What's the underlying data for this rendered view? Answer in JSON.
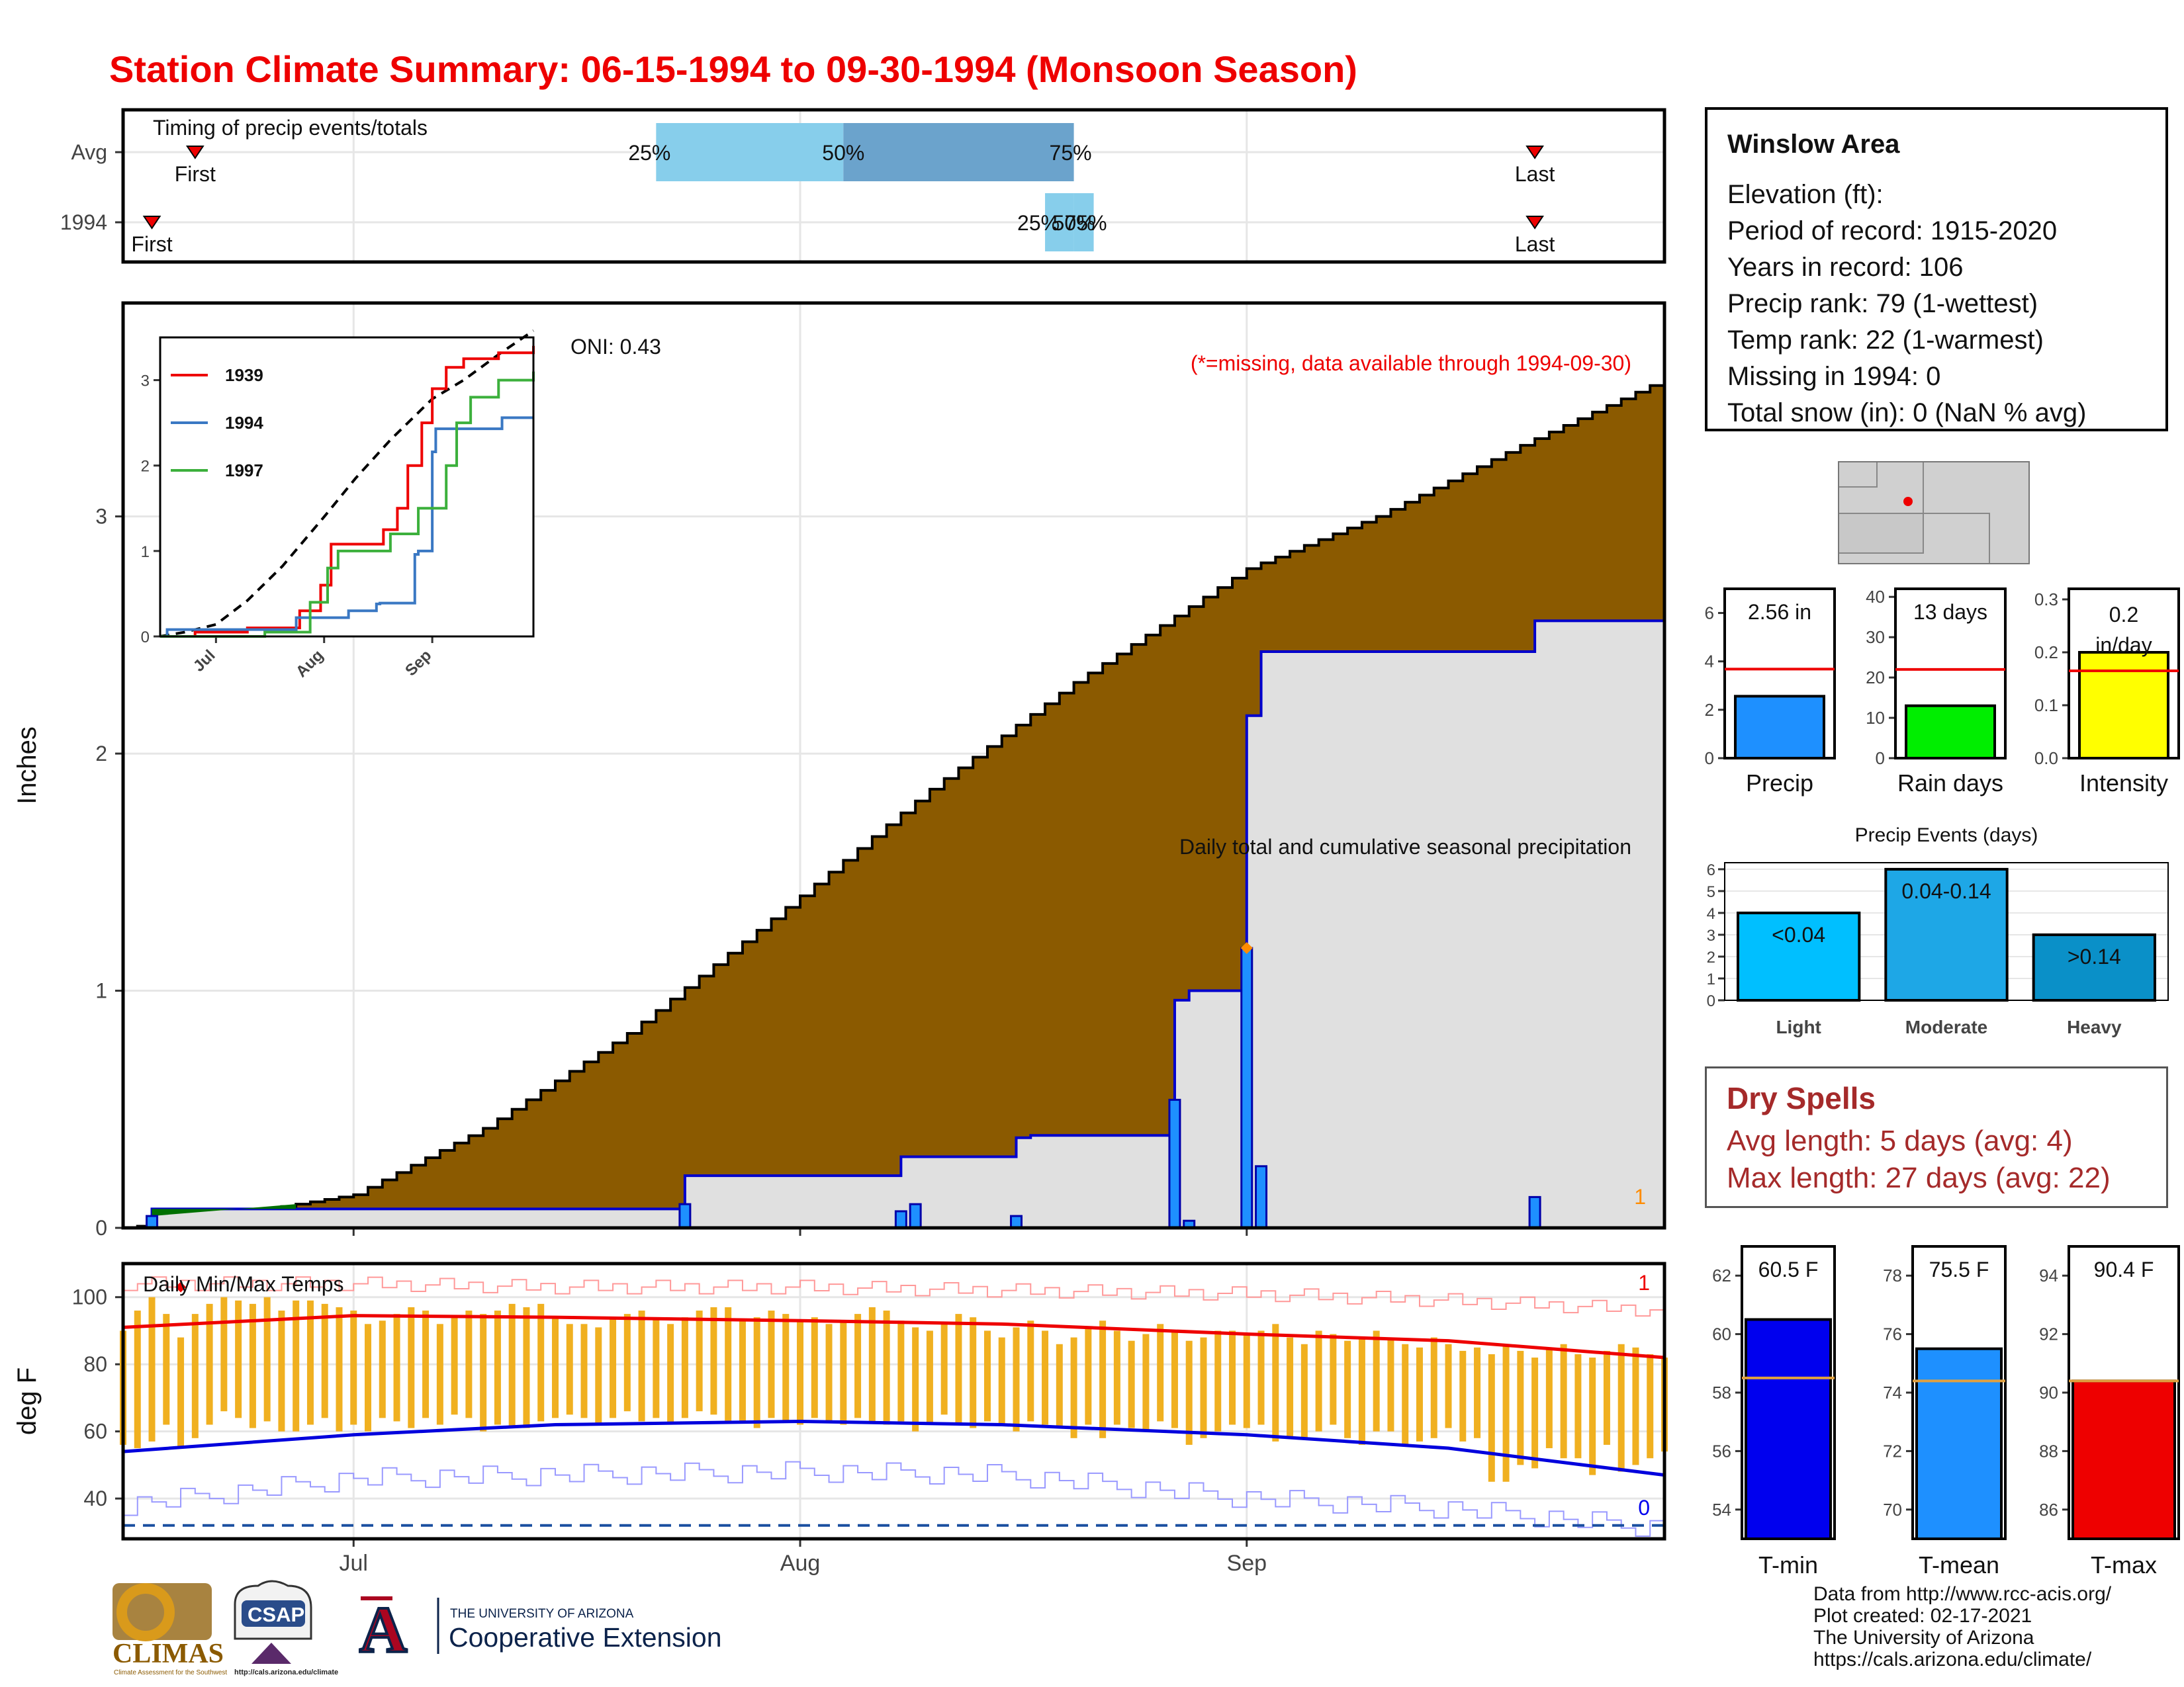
{
  "title": "Station Climate Summary: 06-15-1994 to 09-30-1994 (Monsoon Season)",
  "station": {
    "name": "Winslow Area",
    "lines": [
      "Elevation (ft):",
      "Period of record: 1915-2020",
      "Years in record: 106",
      "Precip rank: 79 (1-wettest)",
      "Temp rank: 22 (1-warmest)",
      "Missing in 1994: 0",
      "Total snow (in): 0 (NaN % avg)"
    ]
  },
  "dry_spells": {
    "title": "Dry Spells",
    "avg": "Avg length: 5 days (avg: 4)",
    "max": "Max length: 27 days (avg: 22)"
  },
  "credits": [
    "Data from http://www.rcc-acis.org/",
    "Plot created: 02-17-2021",
    "The University of Arizona",
    "https://cals.arizona.edu/climate/"
  ],
  "logos": {
    "climas": "CLIMAS",
    "climas_sub": "Climate Assessment for the Southwest",
    "csap": "CSAP",
    "csap_url": "http://cals.arizona.edu/climate",
    "ua_small": "THE UNIVERSITY OF ARIZONA",
    "ua_big": "Cooperative Extension",
    "ua_letter": "A"
  },
  "colors": {
    "title": "#ee0000",
    "avg_cumulative": "#8b5a00",
    "year_cumulative": "#e0e0e0",
    "year_line": "#0000cc",
    "daily_bar": "#1e90ff",
    "temp_bar": "#f0b020",
    "tmax_line": "#ee0000",
    "tmin_line": "#0000dd",
    "dry_text": "#a52a2a",
    "light_bar": "#00bfff",
    "moderate_bar": "#1ea7e6",
    "heavy_bar": "#0a90c8"
  },
  "chart_data": [
    {
      "id": "timing",
      "type": "bar",
      "title": "Timing of precip events/totals",
      "rows": [
        "Avg",
        "1994"
      ],
      "x_axis": "date",
      "xlim": [
        "1994-06-15",
        "1994-09-30"
      ],
      "xticks": [
        "Jul",
        "Aug",
        "Sep"
      ],
      "avg": {
        "first": "1994-06-20",
        "p25": "1994-07-22",
        "p50": "1994-08-04",
        "p75": "1994-08-20",
        "last": "1994-09-21"
      },
      "y1994": {
        "first": "1994-06-17",
        "p25": "1994-08-18",
        "p50": "1994-08-20",
        "p75": "1994-08-20",
        "last": "1994-09-21"
      },
      "labels": {
        "first": "First",
        "last": "Last",
        "p25": "25%",
        "p50": "50%",
        "p75": "75%"
      }
    },
    {
      "id": "precip",
      "type": "area",
      "title": "Daily total and cumulative seasonal precipitation",
      "note": "(*=missing, data available through 1994-09-30)",
      "oni": "ONI: 0.43",
      "ylabel": "Inches",
      "ylim": [
        0,
        3.9
      ],
      "yticks": [
        0,
        1,
        2,
        3
      ],
      "x_axis": "date",
      "xlim": [
        "1994-06-15",
        "1994-09-30"
      ],
      "avg_cumulative": {
        "dates": [
          "1994-06-15",
          "1994-06-22",
          "1994-07-01",
          "1994-07-10",
          "1994-07-20",
          "1994-08-01",
          "1994-08-10",
          "1994-08-20",
          "1994-09-01",
          "1994-09-10",
          "1994-09-20",
          "1994-09-30"
        ],
        "values": [
          0.0,
          0.05,
          0.14,
          0.42,
          0.82,
          1.4,
          1.85,
          2.3,
          2.78,
          3.0,
          3.3,
          3.58
        ]
      },
      "cumulative_1994": {
        "dates": [
          "1994-06-15",
          "1994-06-17",
          "1994-07-24",
          "1994-08-08",
          "1994-08-16",
          "1994-08-17",
          "1994-08-27",
          "1994-08-28",
          "1994-09-01",
          "1994-09-02",
          "1994-09-21",
          "1994-09-30"
        ],
        "values": [
          0.0,
          0.08,
          0.22,
          0.3,
          0.38,
          0.39,
          0.96,
          1.0,
          2.16,
          2.43,
          2.56,
          2.56
        ]
      },
      "daily_1994": {
        "dates": [
          "1994-06-17",
          "1994-07-24",
          "1994-08-08",
          "1994-08-09",
          "1994-08-16",
          "1994-08-27",
          "1994-08-28",
          "1994-09-01",
          "1994-09-02",
          "1994-09-21"
        ],
        "values": [
          0.05,
          0.1,
          0.07,
          0.1,
          0.05,
          0.54,
          0.03,
          1.18,
          0.26,
          0.13
        ]
      },
      "record_flag": {
        "date": "1994-09-01",
        "value": 1.18
      },
      "corner_label": "1"
    },
    {
      "id": "inset",
      "type": "line",
      "xlim": [
        "1994-06-15",
        "1994-09-30"
      ],
      "xticks": [
        "Jul",
        "Aug",
        "Sep"
      ],
      "ylim": [
        0,
        3.5
      ],
      "yticks": [
        0,
        1,
        2,
        3
      ],
      "avg_dashed": {
        "dates": [
          "1994-06-15",
          "1994-06-22",
          "1994-07-01",
          "1994-07-10",
          "1994-07-20",
          "1994-08-01",
          "1994-08-10",
          "1994-08-20",
          "1994-09-01",
          "1994-09-10",
          "1994-09-20",
          "1994-09-30"
        ],
        "values": [
          0.0,
          0.05,
          0.14,
          0.42,
          0.82,
          1.4,
          1.85,
          2.3,
          2.78,
          3.0,
          3.3,
          3.58
        ]
      },
      "series": [
        {
          "name": "1939",
          "color": "#ee0000",
          "dates": [
            "1994-06-15",
            "1994-06-25",
            "1994-07-10",
            "1994-07-25",
            "1994-07-31",
            "1994-08-03",
            "1994-08-18",
            "1994-08-22",
            "1994-08-25",
            "1994-08-29",
            "1994-09-01",
            "1994-09-05",
            "1994-09-10",
            "1994-09-20",
            "1994-09-30"
          ],
          "values": [
            0.0,
            0.05,
            0.1,
            0.3,
            0.6,
            1.08,
            1.25,
            1.5,
            2.0,
            2.5,
            2.9,
            3.15,
            3.25,
            3.32,
            3.4
          ]
        },
        {
          "name": "1994",
          "color": "#3a78c3",
          "dates": [
            "1994-06-15",
            "1994-06-17",
            "1994-07-24",
            "1994-08-08",
            "1994-08-16",
            "1994-08-17",
            "1994-08-27",
            "1994-08-28",
            "1994-09-01",
            "1994-09-02",
            "1994-09-21",
            "1994-09-30"
          ],
          "values": [
            0.0,
            0.08,
            0.22,
            0.3,
            0.38,
            0.39,
            0.96,
            1.0,
            2.16,
            2.43,
            2.56,
            2.56
          ]
        },
        {
          "name": "1997",
          "color": "#3cb03c",
          "dates": [
            "1994-06-15",
            "1994-07-15",
            "1994-07-28",
            "1994-08-02",
            "1994-08-05",
            "1994-08-20",
            "1994-08-28",
            "1994-09-05",
            "1994-09-08",
            "1994-09-12",
            "1994-09-20",
            "1994-09-30"
          ],
          "values": [
            0.0,
            0.05,
            0.4,
            0.8,
            1.0,
            1.2,
            1.5,
            2.0,
            2.5,
            2.8,
            3.0,
            3.1
          ]
        }
      ]
    },
    {
      "id": "temps",
      "type": "bar",
      "title": "Daily Min/Max Temps",
      "ylabel": "deg F",
      "ylim": [
        28,
        110
      ],
      "yticks": [
        40,
        60,
        80,
        100
      ],
      "x_axis": "date",
      "xlim": [
        "1994-06-15",
        "1994-09-30"
      ],
      "xticks": [
        "Jul",
        "Aug",
        "Sep"
      ],
      "tmax_daily": [
        90,
        96,
        100,
        95,
        88,
        95,
        98,
        100,
        99,
        98,
        100,
        96,
        99,
        99,
        98,
        97,
        96,
        92,
        93,
        95,
        97,
        96,
        92,
        94,
        96,
        95,
        96,
        98,
        97,
        98,
        94,
        92,
        92,
        91,
        94,
        95,
        96,
        94,
        92,
        94,
        96,
        97,
        97,
        93,
        94,
        96,
        95,
        93,
        94,
        92,
        93,
        95,
        97,
        96,
        93,
        91,
        90,
        92,
        95,
        94,
        90,
        88,
        91,
        93,
        90,
        86,
        88,
        91,
        93,
        90,
        87,
        89,
        92,
        90,
        87,
        88,
        90,
        90,
        89,
        90,
        92,
        88,
        86,
        90,
        89,
        87,
        88,
        90,
        88,
        86,
        85,
        88,
        86,
        84,
        85,
        83,
        86,
        84,
        82,
        85,
        86,
        83,
        82,
        84,
        86,
        85,
        83,
        82
      ],
      "tmin_daily": [
        56,
        55,
        57,
        62,
        55,
        58,
        62,
        66,
        64,
        61,
        63,
        60,
        60,
        62,
        64,
        60,
        62,
        60,
        64,
        63,
        61,
        64,
        62,
        65,
        64,
        60,
        62,
        61,
        61,
        63,
        64,
        65,
        64,
        62,
        64,
        66,
        63,
        64,
        62,
        64,
        66,
        65,
        63,
        63,
        61,
        64,
        63,
        62,
        64,
        63,
        62,
        64,
        63,
        62,
        63,
        60,
        62,
        65,
        62,
        61,
        63,
        62,
        60,
        63,
        62,
        61,
        58,
        62,
        58,
        62,
        61,
        60,
        63,
        61,
        56,
        58,
        60,
        62,
        61,
        62,
        57,
        58,
        58,
        60,
        62,
        58,
        56,
        60,
        60,
        56,
        57,
        58,
        61,
        57,
        58,
        45,
        45,
        50,
        49,
        55,
        52,
        52,
        47,
        56,
        48,
        50,
        52,
        54
      ],
      "tmax_mean": {
        "dates": [
          "1994-06-15",
          "1994-07-01",
          "1994-07-15",
          "1994-08-01",
          "1994-08-15",
          "1994-09-01",
          "1994-09-15",
          "1994-09-30"
        ],
        "values": [
          91,
          94.5,
          94,
          93,
          92,
          89,
          87,
          82
        ]
      },
      "tmin_mean": {
        "dates": [
          "1994-06-15",
          "1994-07-01",
          "1994-07-15",
          "1994-08-01",
          "1994-08-15",
          "1994-09-01",
          "1994-09-15",
          "1994-09-30"
        ],
        "values": [
          54,
          59,
          62,
          63,
          62,
          59,
          55,
          47
        ]
      },
      "record_high_line": {
        "dates": [
          "1994-06-15",
          "1994-07-01",
          "1994-07-15",
          "1994-08-01",
          "1994-08-15",
          "1994-09-01",
          "1994-09-15",
          "1994-09-30"
        ],
        "values": [
          104,
          104,
          103,
          103,
          102,
          101,
          99,
          96
        ]
      },
      "record_low_line": {
        "dates": [
          "1994-06-15",
          "1994-07-01",
          "1994-07-15",
          "1994-08-01",
          "1994-08-15",
          "1994-09-01",
          "1994-09-15",
          "1994-09-30"
        ],
        "values": [
          38,
          46,
          47,
          48,
          47,
          40,
          37,
          31
        ]
      },
      "freeze_line": 32,
      "record_flag": {
        "date": "1994-06-19",
        "value": 103
      },
      "label_high": "1",
      "label_low": "0"
    },
    {
      "id": "season_bars",
      "type": "bar",
      "panels": [
        {
          "categories": [
            "Precip"
          ],
          "values": [
            2.56
          ],
          "label": "2.56 in",
          "avg": 3.68,
          "ylim": [
            0,
            7
          ],
          "yticks": [
            0,
            2,
            4,
            6
          ],
          "color": "#1e90ff"
        },
        {
          "categories": [
            "Rain days"
          ],
          "values": [
            13
          ],
          "label": "13 days",
          "avg": 22,
          "ylim": [
            0,
            42
          ],
          "yticks": [
            0,
            10,
            20,
            30,
            40
          ],
          "color": "#00ee00"
        },
        {
          "categories": [
            "Intensity"
          ],
          "values": [
            0.2
          ],
          "label": "0.2 in/day",
          "avg": 0.165,
          "ylim": [
            0,
            0.32
          ],
          "yticks": [
            0.0,
            0.1,
            0.2,
            0.3
          ],
          "color": "#ffff00"
        }
      ]
    },
    {
      "id": "events",
      "type": "bar",
      "title": "Precip Events (days)",
      "categories": [
        "Light",
        "Moderate",
        "Heavy"
      ],
      "values": [
        4,
        6,
        3
      ],
      "value_labels": [
        "<0.04",
        "0.04-0.14",
        ">0.14"
      ],
      "ylim": [
        0,
        6.3
      ],
      "yticks": [
        0,
        1,
        2,
        3,
        4,
        5,
        6
      ]
    },
    {
      "id": "temp_bars",
      "type": "bar",
      "panels": [
        {
          "categories": [
            "T-min"
          ],
          "values": [
            60.5
          ],
          "label": "60.5 F",
          "avg": 58.5,
          "ylim": [
            53,
            63
          ],
          "yticks": [
            54,
            56,
            58,
            60,
            62
          ],
          "color": "#0000ee"
        },
        {
          "categories": [
            "T-mean"
          ],
          "values": [
            75.5
          ],
          "label": "75.5 F",
          "avg": 74.4,
          "ylim": [
            69,
            79
          ],
          "yticks": [
            70,
            72,
            74,
            76,
            78
          ],
          "color": "#1e90ff"
        },
        {
          "categories": [
            "T-max"
          ],
          "values": [
            90.4
          ],
          "label": "90.4 F",
          "avg": 90.4,
          "ylim": [
            85,
            95
          ],
          "yticks": [
            86,
            88,
            90,
            92,
            94
          ],
          "color": "#ee0000"
        }
      ]
    }
  ]
}
